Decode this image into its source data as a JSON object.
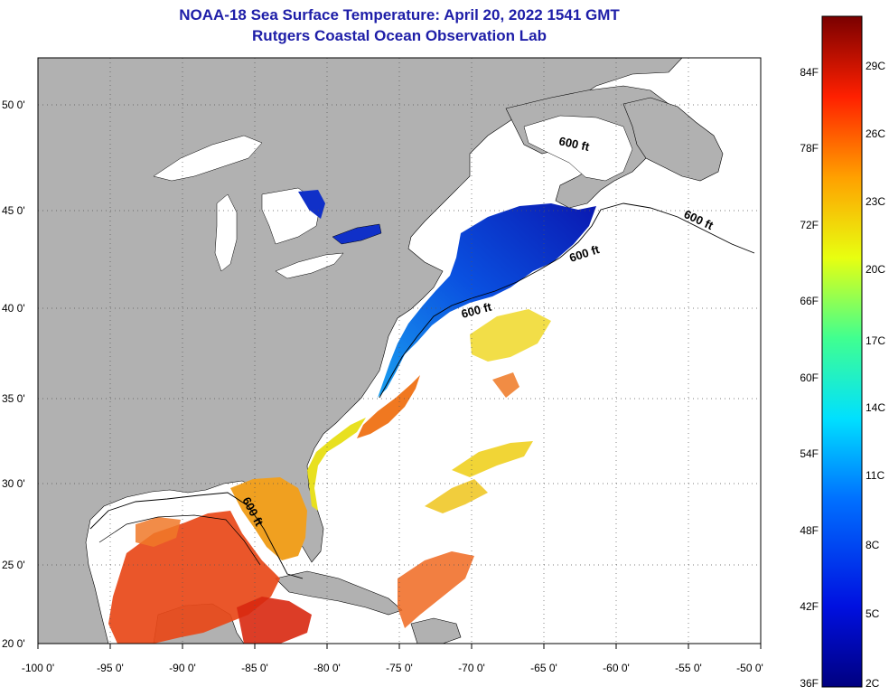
{
  "title": {
    "line1": "NOAA-18 Sea Surface Temperature:  April 20, 2022 1541 GMT",
    "line2": "Rutgers Coastal Ocean Observation Lab"
  },
  "axes": {
    "lon_labels": [
      "-100 0'",
      "-95 0'",
      "-90 0'",
      "-85 0'",
      "-80 0'",
      "-75 0'",
      "-70 0'",
      "-65 0'",
      "-60 0'",
      "-55 0'",
      "-50 0'"
    ],
    "lat_labels": [
      "50 0'",
      "45 0'",
      "40 0'",
      "35 0'",
      "30 0'",
      "25 0'",
      "20 0'"
    ]
  },
  "contour_labels": [
    "600 ft",
    "600 ft",
    "600 ft",
    "600 ft",
    "600 ft"
  ],
  "colorbar": {
    "fahrenheit": [
      "84F",
      "78F",
      "72F",
      "66F",
      "60F",
      "54F",
      "48F",
      "42F",
      "36F"
    ],
    "celsius": [
      "29C",
      "26C",
      "23C",
      "20C",
      "17C",
      "14C",
      "11C",
      "8C",
      "5C",
      "2C"
    ]
  },
  "colors": {
    "land": "#b1b1b1",
    "title": "#1e1ea8",
    "cold": "#0a28c8",
    "warm": "#e84010"
  }
}
